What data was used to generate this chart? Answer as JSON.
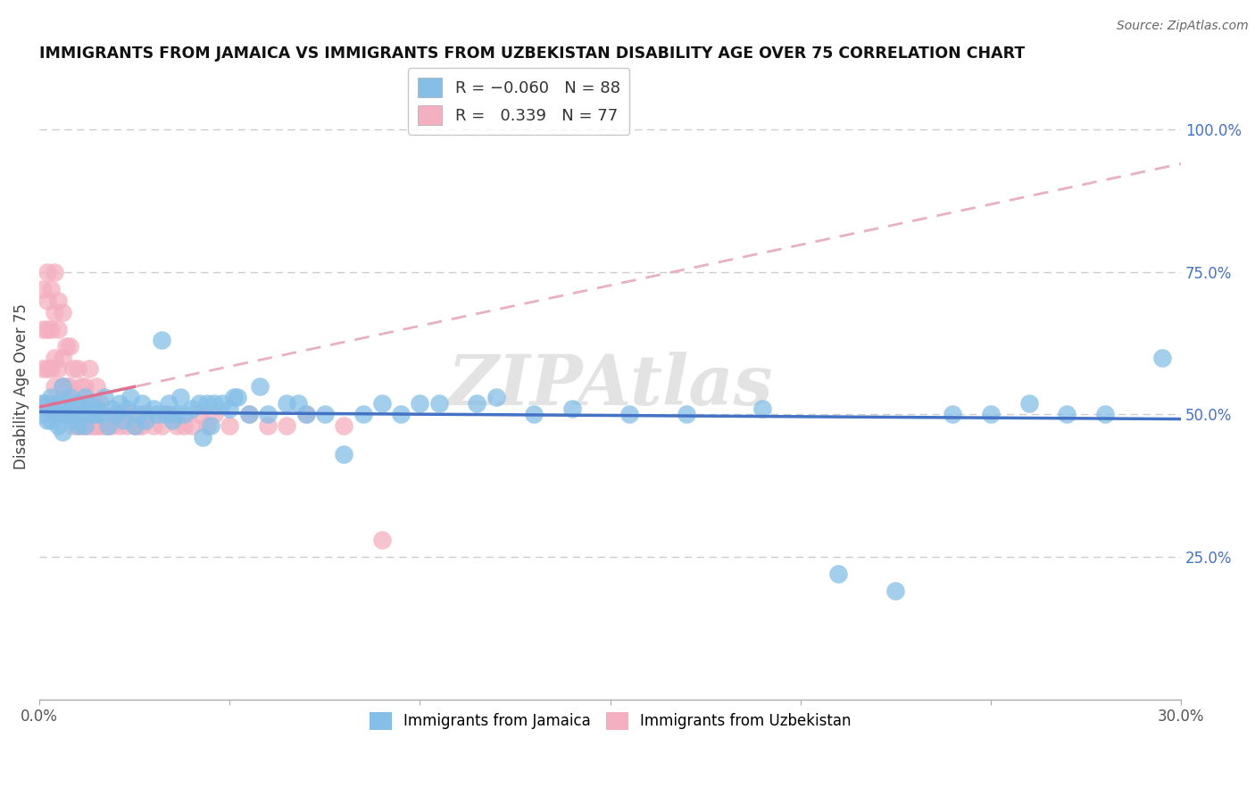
{
  "title": "IMMIGRANTS FROM JAMAICA VS IMMIGRANTS FROM UZBEKISTAN DISABILITY AGE OVER 75 CORRELATION CHART",
  "source": "Source: ZipAtlas.com",
  "ylabel": "Disability Age Over 75",
  "xlim": [
    0.0,
    0.3
  ],
  "ylim": [
    0.0,
    1.1
  ],
  "xticks": [
    0.0,
    0.05,
    0.1,
    0.15,
    0.2,
    0.25,
    0.3
  ],
  "xticklabels": [
    "0.0%",
    "",
    "",
    "",
    "",
    "",
    "30.0%"
  ],
  "yticks_right": [
    0.25,
    0.5,
    0.75,
    1.0
  ],
  "yticklabels_right": [
    "25.0%",
    "50.0%",
    "75.0%",
    "100.0%"
  ],
  "jamaica_color": "#85bfe8",
  "uzbekistan_color": "#f4afc0",
  "jamaica_R": -0.06,
  "jamaica_N": 88,
  "uzbekistan_R": 0.339,
  "uzbekistan_N": 77,
  "watermark": "ZIPAtlas",
  "legend_jamaica": "Immigrants from Jamaica",
  "legend_uzbekistan": "Immigrants from Uzbekistan",
  "jamaica_scatter_x": [
    0.001,
    0.001,
    0.002,
    0.002,
    0.003,
    0.003,
    0.004,
    0.004,
    0.005,
    0.005,
    0.005,
    0.006,
    0.006,
    0.007,
    0.007,
    0.008,
    0.008,
    0.009,
    0.009,
    0.01,
    0.01,
    0.011,
    0.012,
    0.012,
    0.013,
    0.013,
    0.015,
    0.015,
    0.016,
    0.017,
    0.018,
    0.019,
    0.02,
    0.021,
    0.022,
    0.023,
    0.024,
    0.025,
    0.026,
    0.027,
    0.028,
    0.03,
    0.031,
    0.032,
    0.033,
    0.034,
    0.035,
    0.036,
    0.037,
    0.038,
    0.04,
    0.042,
    0.043,
    0.044,
    0.045,
    0.046,
    0.048,
    0.05,
    0.051,
    0.052,
    0.055,
    0.058,
    0.06,
    0.065,
    0.068,
    0.07,
    0.075,
    0.08,
    0.085,
    0.09,
    0.095,
    0.1,
    0.105,
    0.115,
    0.12,
    0.13,
    0.14,
    0.155,
    0.17,
    0.19,
    0.21,
    0.225,
    0.24,
    0.25,
    0.26,
    0.27,
    0.28,
    0.295
  ],
  "jamaica_scatter_y": [
    0.5,
    0.52,
    0.52,
    0.49,
    0.53,
    0.49,
    0.51,
    0.5,
    0.52,
    0.5,
    0.48,
    0.55,
    0.47,
    0.52,
    0.5,
    0.5,
    0.53,
    0.49,
    0.51,
    0.52,
    0.48,
    0.5,
    0.53,
    0.48,
    0.5,
    0.52,
    0.51,
    0.5,
    0.5,
    0.53,
    0.48,
    0.51,
    0.5,
    0.52,
    0.49,
    0.51,
    0.53,
    0.48,
    0.5,
    0.52,
    0.49,
    0.51,
    0.5,
    0.63,
    0.5,
    0.52,
    0.49,
    0.5,
    0.53,
    0.5,
    0.51,
    0.52,
    0.46,
    0.52,
    0.48,
    0.52,
    0.52,
    0.51,
    0.53,
    0.53,
    0.5,
    0.55,
    0.5,
    0.52,
    0.52,
    0.5,
    0.5,
    0.43,
    0.5,
    0.52,
    0.5,
    0.52,
    0.52,
    0.52,
    0.53,
    0.5,
    0.51,
    0.5,
    0.5,
    0.51,
    0.22,
    0.19,
    0.5,
    0.5,
    0.52,
    0.5,
    0.5,
    0.6
  ],
  "uzbekistan_scatter_x": [
    0.001,
    0.001,
    0.001,
    0.001,
    0.002,
    0.002,
    0.002,
    0.002,
    0.003,
    0.003,
    0.003,
    0.003,
    0.004,
    0.004,
    0.004,
    0.004,
    0.005,
    0.005,
    0.005,
    0.005,
    0.006,
    0.006,
    0.006,
    0.006,
    0.007,
    0.007,
    0.007,
    0.008,
    0.008,
    0.008,
    0.009,
    0.009,
    0.009,
    0.01,
    0.01,
    0.01,
    0.011,
    0.011,
    0.012,
    0.012,
    0.013,
    0.013,
    0.013,
    0.014,
    0.014,
    0.015,
    0.015,
    0.016,
    0.016,
    0.017,
    0.018,
    0.019,
    0.02,
    0.021,
    0.022,
    0.023,
    0.024,
    0.025,
    0.026,
    0.027,
    0.028,
    0.03,
    0.032,
    0.034,
    0.036,
    0.038,
    0.04,
    0.042,
    0.044,
    0.046,
    0.05,
    0.055,
    0.06,
    0.065,
    0.07,
    0.08,
    0.09
  ],
  "uzbekistan_scatter_y": [
    0.52,
    0.58,
    0.65,
    0.72,
    0.58,
    0.65,
    0.7,
    0.75,
    0.52,
    0.58,
    0.65,
    0.72,
    0.55,
    0.6,
    0.68,
    0.75,
    0.52,
    0.58,
    0.65,
    0.7,
    0.5,
    0.55,
    0.6,
    0.68,
    0.5,
    0.55,
    0.62,
    0.5,
    0.55,
    0.62,
    0.48,
    0.52,
    0.58,
    0.48,
    0.52,
    0.58,
    0.48,
    0.55,
    0.48,
    0.55,
    0.48,
    0.52,
    0.58,
    0.48,
    0.52,
    0.48,
    0.55,
    0.48,
    0.52,
    0.48,
    0.48,
    0.48,
    0.5,
    0.48,
    0.5,
    0.48,
    0.5,
    0.48,
    0.48,
    0.48,
    0.5,
    0.48,
    0.48,
    0.5,
    0.48,
    0.48,
    0.48,
    0.5,
    0.48,
    0.5,
    0.48,
    0.5,
    0.48,
    0.48,
    0.5,
    0.48,
    0.28
  ],
  "bg_color": "#ffffff",
  "grid_color": "#cccccc",
  "trendline_jamaica_color": "#4472c4",
  "trendline_uzbekistan_color": "#e07090",
  "uzbekistan_dashed_color": "#e8b0c0"
}
